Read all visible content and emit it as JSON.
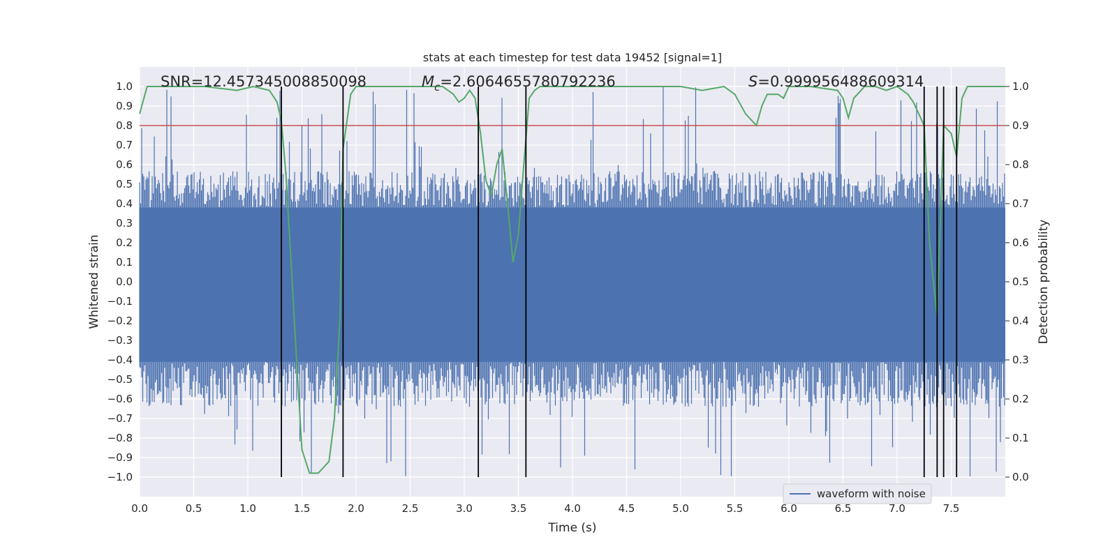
{
  "chart_data": {
    "type": "line",
    "title": "stats at each timestep for test data 19452 [signal=1]",
    "xlabel": "Time (s)",
    "ylabel_left": "Whitened strain",
    "ylabel_right": "Detection probability",
    "xlim": [
      0.0,
      8.0
    ],
    "ylim_left": [
      -1.1,
      1.1
    ],
    "ylim_right": [
      -0.05,
      1.05
    ],
    "x_ticks": [
      "0.0",
      "0.5",
      "1.0",
      "1.5",
      "2.0",
      "2.5",
      "3.0",
      "3.5",
      "4.0",
      "4.5",
      "5.0",
      "5.5",
      "6.0",
      "6.5",
      "7.0",
      "7.5"
    ],
    "y_ticks_left": [
      "1.0",
      "0.9",
      "0.8",
      "0.7",
      "0.6",
      "0.5",
      "0.4",
      "0.3",
      "0.2",
      "0.1",
      "0.0",
      "-0.1",
      "-0.2",
      "-0.3",
      "-0.4",
      "-0.5",
      "-0.6",
      "-0.7",
      "-0.8",
      "-0.9",
      "-1.0"
    ],
    "y_ticks_right": [
      "1.0",
      "0.9",
      "0.8",
      "0.7",
      "0.6",
      "0.5",
      "0.4",
      "0.3",
      "0.2",
      "0.1",
      "0.0"
    ],
    "annotations": {
      "snr": "SNR=12.457345008850098",
      "mc_symbol": "M",
      "mc_sub": "c",
      "mc_value": "=2.6064655780792236",
      "s_symbol": "S",
      "s_value": "=0.999956488609314"
    },
    "threshold_right": 0.9,
    "vlines_x": [
      1.31,
      1.88,
      3.13,
      3.57,
      7.25,
      7.37,
      7.43,
      7.55
    ],
    "waveform": {
      "name": "waveform with noise",
      "color": "#4c72b0",
      "envelope_p95": 0.55,
      "core_p75": 0.38,
      "core_n25": -0.41,
      "envelope_n95": -0.62,
      "max": 1.0,
      "min": -1.0
    },
    "probability": {
      "color": "#55a868",
      "x": [
        0.0,
        0.07,
        0.15,
        0.3,
        0.6,
        0.9,
        1.05,
        1.2,
        1.27,
        1.31,
        1.35,
        1.4,
        1.45,
        1.5,
        1.57,
        1.65,
        1.75,
        1.8,
        1.85,
        1.88,
        1.95,
        2.0,
        2.1,
        2.5,
        2.8,
        2.9,
        2.95,
        3.0,
        3.05,
        3.1,
        3.15,
        3.2,
        3.25,
        3.3,
        3.35,
        3.4,
        3.45,
        3.5,
        3.55,
        3.6,
        3.65,
        3.7,
        3.8,
        4.0,
        4.5,
        5.0,
        5.2,
        5.4,
        5.5,
        5.6,
        5.7,
        5.75,
        5.8,
        5.9,
        5.95,
        6.0,
        6.2,
        6.45,
        6.5,
        6.55,
        6.6,
        6.7,
        6.8,
        6.9,
        7.0,
        7.1,
        7.15,
        7.25,
        7.3,
        7.37,
        7.43,
        7.5,
        7.55,
        7.6,
        7.65,
        7.7,
        8.0
      ],
      "y": [
        0.93,
        1.0,
        1.0,
        1.0,
        1.0,
        0.99,
        1.0,
        0.99,
        0.96,
        0.91,
        0.78,
        0.55,
        0.3,
        0.07,
        0.01,
        0.01,
        0.04,
        0.15,
        0.4,
        0.84,
        0.98,
        1.0,
        1.0,
        1.0,
        1.0,
        0.98,
        0.96,
        0.97,
        0.99,
        0.97,
        0.88,
        0.76,
        0.72,
        0.8,
        0.84,
        0.7,
        0.55,
        0.62,
        0.8,
        0.97,
        0.99,
        1.0,
        1.0,
        1.0,
        1.0,
        1.0,
        0.99,
        1.0,
        0.98,
        0.93,
        0.9,
        0.95,
        0.98,
        0.98,
        0.97,
        1.0,
        1.0,
        0.99,
        0.97,
        0.92,
        0.97,
        1.0,
        1.0,
        0.99,
        1.0,
        0.98,
        0.96,
        0.9,
        0.6,
        0.41,
        0.9,
        0.88,
        0.82,
        0.97,
        1.0,
        1.0,
        1.0
      ]
    },
    "threshold_color": "#c44e52",
    "legend": {
      "position": "lower-right",
      "entries": [
        "waveform with noise"
      ]
    }
  }
}
